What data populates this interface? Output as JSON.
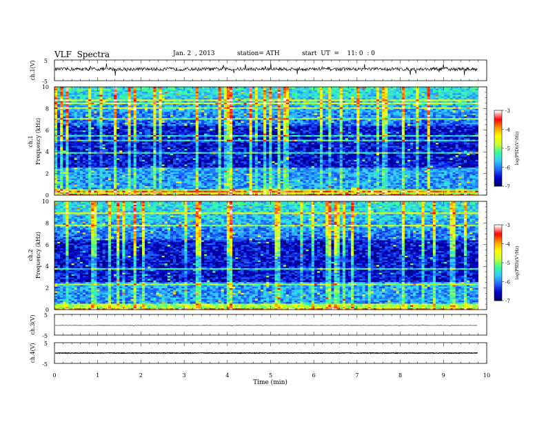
{
  "header": {
    "title": "VLF  Spectra",
    "date": "Jan. 2  , 2013",
    "station": "station= ATH",
    "start": "start  UT  =    11: 0  : 0"
  },
  "chart_data": [
    {
      "type": "line",
      "panel": "ch1-waveform",
      "ylabel": "ch.1(V)",
      "ylim": [
        -5,
        5
      ],
      "y_ticks": [
        "5",
        "-5"
      ],
      "xlim": [
        0,
        10
      ],
      "baseline": 0.6,
      "noise_amplitude": 0.8,
      "spike_amplitude": 3,
      "data_end": 9.8
    },
    {
      "type": "heatmap",
      "panel": "ch1-spectrogram",
      "ylabel_channel": "ch.1",
      "ylabel": "Frequency  (kHz)",
      "ylim": [
        0,
        10
      ],
      "y_ticks": [
        "0",
        "2",
        "4",
        "6",
        "8",
        "10"
      ],
      "xlim": [
        0,
        10
      ],
      "data_end": 9.8,
      "colorbar": {
        "label": "log(PSD)(V²/Hz)",
        "range": [
          -7,
          -3
        ],
        "ticks": [
          "-3",
          "-4",
          "-5",
          "-6",
          "-7"
        ]
      }
    },
    {
      "type": "heatmap",
      "panel": "ch2-spectrogram",
      "ylabel_channel": "ch.2",
      "ylabel": "Frequency  (kHz)",
      "ylim": [
        0,
        10
      ],
      "y_ticks": [
        "0",
        "2",
        "4",
        "6",
        "8",
        "10"
      ],
      "xlim": [
        0,
        10
      ],
      "data_end": 9.8,
      "colorbar": {
        "label": "log(PSD)(V²/Hz)",
        "range": [
          -7,
          -3
        ],
        "ticks": [
          "-3",
          "-4",
          "-5",
          "-6",
          "-7"
        ]
      }
    },
    {
      "type": "line",
      "panel": "ch3-waveform",
      "ylabel": "ch.3(V)",
      "ylim": [
        -5,
        5
      ],
      "y_ticks": [
        "5",
        "-5"
      ],
      "xlim": [
        0,
        10
      ],
      "baseline": -0.3,
      "noise_amplitude": 0.05,
      "spike_amplitude": 0.3,
      "data_end": 9.8
    },
    {
      "type": "line",
      "panel": "ch4-waveform",
      "ylabel": "ch.4(V)",
      "ylim": [
        -5,
        5
      ],
      "y_ticks": [
        "5",
        "-5"
      ],
      "xlim": [
        0,
        10
      ],
      "baseline": 0,
      "noise_amplitude": 0.15,
      "spike_amplitude": 0,
      "data_end": 9.8
    }
  ],
  "x_axis": {
    "label": "Time  (min)",
    "ticks": [
      "0",
      "1",
      "2",
      "3",
      "4",
      "5",
      "6",
      "7",
      "8",
      "9",
      "10"
    ]
  },
  "colors": {
    "colormap": [
      "#000066",
      "#0000cc",
      "#1f6bff",
      "#33ccff",
      "#33ff99",
      "#ccff33",
      "#ffff00",
      "#ff9900",
      "#ff0000",
      "#ffffff"
    ]
  }
}
